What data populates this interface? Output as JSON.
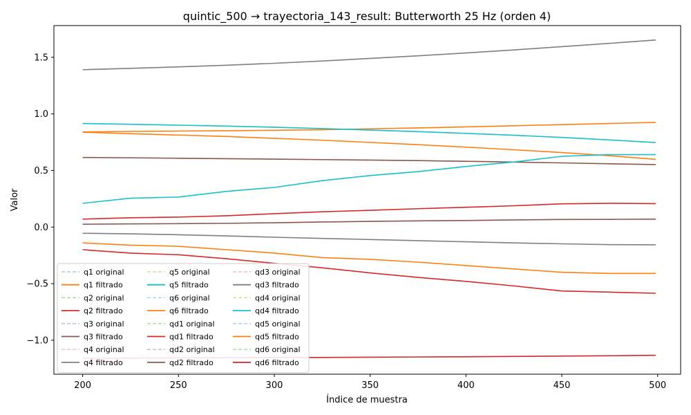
{
  "chart_data": {
    "type": "line",
    "title": "quintic_500 → trayectoria_143_result: Butterworth 25 Hz (orden 4)",
    "xlabel": "Índice de muestra",
    "ylabel": "Valor",
    "xlim": [
      185,
      512
    ],
    "ylim": [
      -1.3,
      1.78
    ],
    "xticks": [
      200,
      250,
      300,
      350,
      400,
      450,
      500
    ],
    "yticks": [
      -1.0,
      -0.5,
      0.0,
      0.5,
      1.0,
      1.5
    ],
    "ytick_labels": [
      "−1.0",
      "−0.5",
      "0.0",
      "0.5",
      "1.0",
      "1.5"
    ],
    "grid": false,
    "legend_position": "lower-left",
    "legend_columns": 3,
    "x": [
      200,
      225,
      250,
      275,
      300,
      325,
      350,
      375,
      400,
      425,
      450,
      475,
      499
    ],
    "series": [
      {
        "name": "q1 original",
        "color": "#aec7e8",
        "dash": true,
        "values": [
          0.84,
          0.845,
          0.848,
          0.851,
          0.855,
          0.86,
          0.868,
          0.876,
          0.885,
          0.895,
          0.905,
          0.915,
          0.925
        ]
      },
      {
        "name": "q1 filtrado",
        "color": "#ff7f0e",
        "dash": false,
        "values": [
          0.84,
          0.845,
          0.848,
          0.851,
          0.855,
          0.86,
          0.868,
          0.876,
          0.885,
          0.895,
          0.905,
          0.915,
          0.925
        ]
      },
      {
        "name": "q2 original",
        "color": "#98df8a",
        "dash": true,
        "values": [
          -1.16,
          -1.158,
          -1.157,
          -1.155,
          -1.154,
          -1.152,
          -1.15,
          -1.148,
          -1.146,
          -1.143,
          -1.14,
          -1.137,
          -1.133
        ]
      },
      {
        "name": "q2 filtrado",
        "color": "#d62728",
        "dash": false,
        "values": [
          -1.16,
          -1.158,
          -1.157,
          -1.155,
          -1.154,
          -1.152,
          -1.15,
          -1.148,
          -1.146,
          -1.143,
          -1.14,
          -1.137,
          -1.133
        ]
      },
      {
        "name": "q3 original",
        "color": "#c5b0d5",
        "dash": true,
        "values": [
          0.615,
          0.612,
          0.608,
          0.604,
          0.6,
          0.596,
          0.592,
          0.587,
          0.581,
          0.574,
          0.567,
          0.559,
          0.552
        ]
      },
      {
        "name": "q3 filtrado",
        "color": "#8c564b",
        "dash": false,
        "values": [
          0.615,
          0.612,
          0.608,
          0.604,
          0.6,
          0.596,
          0.592,
          0.587,
          0.581,
          0.574,
          0.567,
          0.559,
          0.552
        ]
      },
      {
        "name": "q4 original",
        "color": "#f7b6d2",
        "dash": true,
        "values": [
          1.39,
          1.402,
          1.415,
          1.43,
          1.447,
          1.467,
          1.49,
          1.513,
          1.538,
          1.565,
          1.594,
          1.623,
          1.653
        ]
      },
      {
        "name": "q4 filtrado",
        "color": "#7f7f7f",
        "dash": false,
        "values": [
          1.39,
          1.402,
          1.415,
          1.43,
          1.447,
          1.467,
          1.49,
          1.513,
          1.538,
          1.565,
          1.594,
          1.623,
          1.653
        ]
      },
      {
        "name": "q5 original",
        "color": "#dbdb8d",
        "dash": true,
        "values": [
          0.915,
          0.908,
          0.9,
          0.892,
          0.882,
          0.87,
          0.857,
          0.843,
          0.828,
          0.811,
          0.792,
          0.77,
          0.747
        ]
      },
      {
        "name": "q5 filtrado",
        "color": "#17becf",
        "dash": false,
        "values": [
          0.915,
          0.908,
          0.9,
          0.892,
          0.882,
          0.87,
          0.857,
          0.843,
          0.828,
          0.811,
          0.792,
          0.77,
          0.747
        ]
      },
      {
        "name": "q6 original",
        "color": "#9edae5",
        "dash": true,
        "values": [
          0.838,
          0.825,
          0.813,
          0.8,
          0.784,
          0.767,
          0.748,
          0.728,
          0.706,
          0.683,
          0.658,
          0.63,
          0.598
        ]
      },
      {
        "name": "q6 filtrado",
        "color": "#ff7f0e",
        "dash": false,
        "values": [
          0.838,
          0.825,
          0.813,
          0.8,
          0.784,
          0.767,
          0.748,
          0.728,
          0.706,
          0.683,
          0.658,
          0.63,
          0.598
        ]
      },
      {
        "name": "qd1 original",
        "color": "#98df8a",
        "dash": true,
        "values": [
          0.07,
          0.082,
          0.088,
          0.1,
          0.118,
          0.135,
          0.148,
          0.162,
          0.175,
          0.188,
          0.205,
          0.21,
          0.207
        ]
      },
      {
        "name": "qd1 filtrado",
        "color": "#d62728",
        "dash": false,
        "values": [
          0.07,
          0.082,
          0.088,
          0.1,
          0.118,
          0.135,
          0.148,
          0.162,
          0.175,
          0.188,
          0.205,
          0.21,
          0.207
        ]
      },
      {
        "name": "qd2 original",
        "color": "#c5b0d5",
        "dash": true,
        "values": [
          0.025,
          0.028,
          0.03,
          0.033,
          0.038,
          0.045,
          0.05,
          0.055,
          0.058,
          0.063,
          0.067,
          0.068,
          0.07
        ]
      },
      {
        "name": "qd2 filtrado",
        "color": "#8c564b",
        "dash": false,
        "values": [
          0.025,
          0.028,
          0.03,
          0.033,
          0.038,
          0.045,
          0.05,
          0.055,
          0.058,
          0.063,
          0.067,
          0.068,
          0.07
        ]
      },
      {
        "name": "qd3 original",
        "color": "#f7b6d2",
        "dash": true,
        "values": [
          -0.055,
          -0.06,
          -0.068,
          -0.078,
          -0.09,
          -0.1,
          -0.11,
          -0.12,
          -0.13,
          -0.14,
          -0.148,
          -0.155,
          -0.157
        ]
      },
      {
        "name": "qd3 filtrado",
        "color": "#7f7f7f",
        "dash": false,
        "values": [
          -0.055,
          -0.06,
          -0.068,
          -0.078,
          -0.09,
          -0.1,
          -0.11,
          -0.12,
          -0.13,
          -0.14,
          -0.148,
          -0.155,
          -0.157
        ]
      },
      {
        "name": "qd4 original",
        "color": "#dbdb8d",
        "dash": true,
        "values": [
          0.21,
          0.255,
          0.265,
          0.315,
          0.35,
          0.41,
          0.455,
          0.49,
          0.535,
          0.575,
          0.625,
          0.64,
          0.64
        ]
      },
      {
        "name": "qd4 filtrado",
        "color": "#17becf",
        "dash": false,
        "values": [
          0.21,
          0.255,
          0.265,
          0.315,
          0.35,
          0.41,
          0.455,
          0.49,
          0.535,
          0.575,
          0.625,
          0.64,
          0.64
        ]
      },
      {
        "name": "qd5 original",
        "color": "#aec7e8",
        "dash": true,
        "values": [
          -0.14,
          -0.16,
          -0.17,
          -0.2,
          -0.23,
          -0.27,
          -0.285,
          -0.31,
          -0.34,
          -0.37,
          -0.4,
          -0.41,
          -0.41
        ]
      },
      {
        "name": "qd5 filtrado",
        "color": "#ff7f0e",
        "dash": false,
        "values": [
          -0.14,
          -0.16,
          -0.17,
          -0.2,
          -0.23,
          -0.27,
          -0.285,
          -0.31,
          -0.34,
          -0.37,
          -0.4,
          -0.41,
          -0.41
        ]
      },
      {
        "name": "qd6 original",
        "color": "#98df8a",
        "dash": true,
        "values": [
          -0.2,
          -0.23,
          -0.245,
          -0.28,
          -0.32,
          -0.36,
          -0.405,
          -0.445,
          -0.48,
          -0.52,
          -0.565,
          -0.575,
          -0.585
        ]
      },
      {
        "name": "qd6 filtrado",
        "color": "#d62728",
        "dash": false,
        "values": [
          -0.2,
          -0.23,
          -0.245,
          -0.28,
          -0.32,
          -0.36,
          -0.405,
          -0.445,
          -0.48,
          -0.52,
          -0.565,
          -0.575,
          -0.585
        ]
      }
    ]
  }
}
